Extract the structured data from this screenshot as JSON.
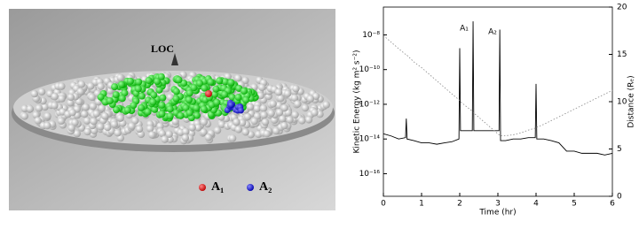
{
  "image": {
    "label": "LOC",
    "legend": [
      "A₁",
      "A₂"
    ]
  },
  "chart_data": {
    "type": "line",
    "x_label": "Time (hr)",
    "y_label": "Kinetic Energy (kg m² s⁻²)",
    "y2_label": "Distance (Rₑ)",
    "annotations": [
      "A₁",
      "A₂"
    ],
    "x": [
      0,
      0.2,
      0.4,
      0.58,
      0.6,
      0.62,
      0.8,
      1.0,
      1.2,
      1.4,
      1.6,
      1.8,
      1.98,
      2.0,
      2.02,
      2.2,
      2.33,
      2.35,
      2.37,
      2.6,
      2.8,
      3.03,
      3.05,
      3.07,
      3.2,
      3.4,
      3.6,
      3.8,
      3.98,
      4.0,
      4.02,
      4.2,
      4.4,
      4.6,
      4.8,
      5.0,
      5.2,
      5.4,
      5.6,
      5.8,
      6.0
    ],
    "series": [
      {
        "color": "#000000",
        "axis": "y",
        "dashed": false,
        "values": [
          2e-14,
          1.5e-14,
          1e-14,
          1.2e-14,
          1.5e-13,
          1e-14,
          8e-15,
          6e-15,
          6e-15,
          5e-15,
          6e-15,
          7e-15,
          1e-14,
          1.7e-09,
          3e-14,
          3e-14,
          3e-14,
          6e-08,
          3e-14,
          3e-14,
          3e-14,
          3e-14,
          2e-08,
          8e-15,
          8e-15,
          1e-14,
          1e-14,
          1.2e-14,
          1.2e-14,
          1.5e-11,
          1e-14,
          1e-14,
          8e-15,
          6e-15,
          2e-15,
          2e-15,
          1.5e-15,
          1.5e-15,
          1.5e-15,
          1.2e-15,
          1.5e-15
        ]
      },
      {
        "color": "#888888",
        "axis": "y2",
        "dashed": true,
        "values": [
          17,
          16.3,
          15.6,
          15.0,
          14.9,
          14.9,
          14.2,
          13.6,
          12.9,
          12.2,
          11.5,
          10.8,
          10.2,
          10.1,
          10.0,
          9.4,
          9.0,
          8.9,
          8.8,
          8.0,
          7.3,
          6.5,
          6.5,
          6.4,
          6.4,
          6.5,
          6.7,
          7.0,
          7.2,
          7.3,
          7.3,
          7.6,
          8.0,
          8.4,
          8.8,
          9.2,
          9.6,
          10.0,
          10.4,
          10.8,
          11.2
        ]
      }
    ],
    "xlim": [
      0,
      6
    ],
    "xticks": [
      0,
      1,
      2,
      3,
      4,
      5,
      6
    ],
    "ylim": [
      5e-18,
      4e-07
    ],
    "ylog": true,
    "yticks": [
      {
        "value": 1e-16,
        "label": "10⁻¹⁶"
      },
      {
        "value": 1e-14,
        "label": "10⁻¹⁴"
      },
      {
        "value": 1e-12,
        "label": "10⁻¹²"
      },
      {
        "value": 1e-10,
        "label": "10⁻¹⁰"
      },
      {
        "value": 1e-08,
        "label": "10⁻⁸"
      }
    ],
    "y2lim": [
      0,
      20
    ],
    "y2ticks": [
      0,
      5,
      10,
      15,
      20
    ]
  }
}
